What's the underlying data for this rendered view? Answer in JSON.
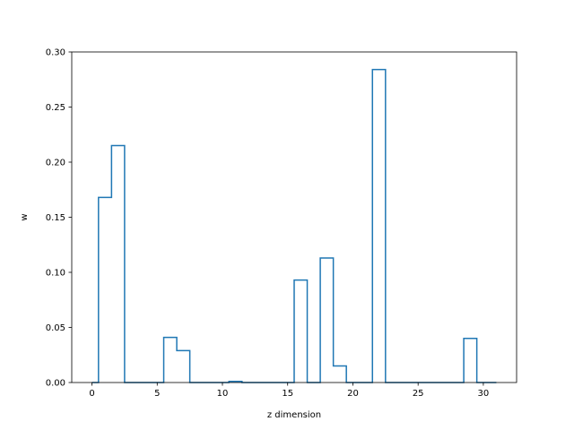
{
  "chart_data": {
    "type": "histogram-step",
    "title": "",
    "xlabel": "z dimension",
    "ylabel": "w",
    "xlim": [
      -1.55,
      32.55
    ],
    "ylim": [
      0,
      0.3
    ],
    "grid": false,
    "x_ticks": [
      0,
      5,
      10,
      15,
      20,
      25,
      30
    ],
    "x_tick_labels": [
      "0",
      "5",
      "10",
      "15",
      "20",
      "25",
      "30"
    ],
    "y_ticks": [
      0.0,
      0.05,
      0.1,
      0.15,
      0.2,
      0.25,
      0.3
    ],
    "y_tick_labels": [
      "0.00",
      "0.05",
      "0.10",
      "0.15",
      "0.20",
      "0.25",
      "0.30"
    ],
    "bin_edges": [
      -0.5,
      0.5,
      1.5,
      2.5,
      3.5,
      4.5,
      5.5,
      6.5,
      7.5,
      8.5,
      9.5,
      10.5,
      11.5,
      12.5,
      13.5,
      14.5,
      15.5,
      16.5,
      17.5,
      18.5,
      19.5,
      20.5,
      21.5,
      22.5,
      23.5,
      24.5,
      25.5,
      26.5,
      27.5,
      28.5,
      29.5,
      30.5,
      31.5
    ],
    "bins": [
      0,
      1,
      2,
      3,
      4,
      5,
      6,
      7,
      8,
      9,
      10,
      11,
      12,
      13,
      14,
      15,
      16,
      17,
      18,
      19,
      20,
      21,
      22,
      23,
      24,
      25,
      26,
      27,
      28,
      29,
      30,
      31
    ],
    "values": [
      0.0,
      0.168,
      0.215,
      0.0,
      0.0,
      0.0,
      0.041,
      0.029,
      0.0,
      0.0,
      0.0,
      0.001,
      0.0,
      0.0,
      0.0,
      0.0,
      0.093,
      0.0,
      0.113,
      0.015,
      0.0,
      0.0,
      0.284,
      0.0,
      0.0,
      0.0,
      0.0,
      0.0,
      0.0,
      0.04,
      0.0,
      0.0
    ],
    "line_color": "#1f77b4"
  }
}
